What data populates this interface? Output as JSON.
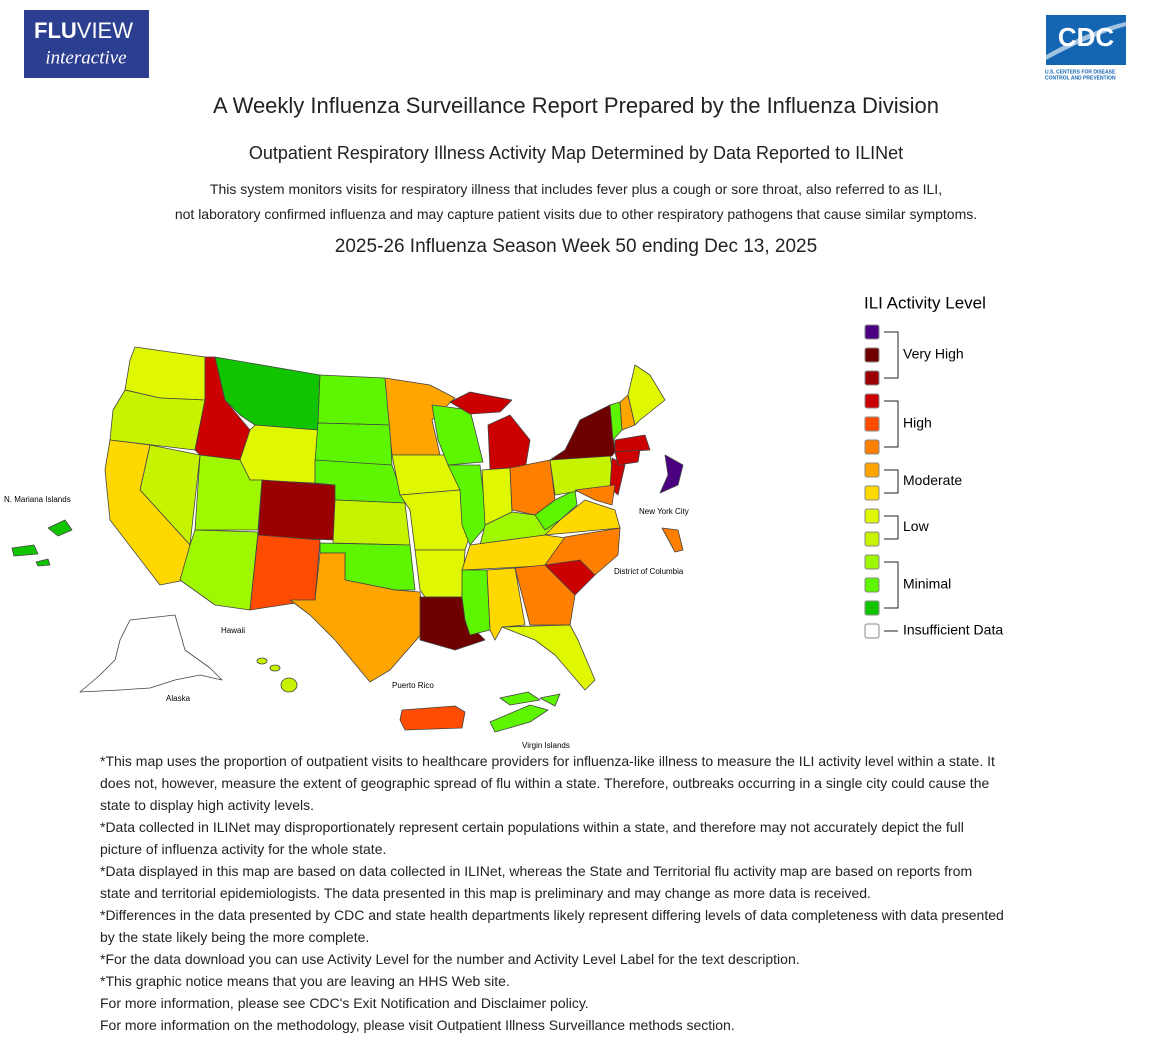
{
  "header": {
    "logo_left": {
      "bold": "FLU",
      "light": "VIEW",
      "script": "interactive"
    },
    "logo_right": {
      "text": "CDC",
      "subtext": [
        "U.S. CENTERS FOR DISEASE",
        "CONTROL AND PREVENTION"
      ]
    }
  },
  "title": "A Weekly Influenza Surveillance Report Prepared by the Influenza Division",
  "subtitle": "Outpatient Respiratory Illness Activity Map Determined by Data Reported to ILINet",
  "description": [
    "This system monitors visits for respiratory illness that includes fever plus a cough or sore throat, also referred to as ILI,",
    "not laboratory confirmed influenza and may capture patient visits due to other respiratory pathogens that cause similar symptoms."
  ],
  "season": "2025-26 Influenza Season Week 50 ending Dec 13, 2025",
  "map": {
    "labels": [
      "N. Mariana Islands",
      "New York City",
      "District of Columbia",
      "Hawaii",
      "Alaska",
      "Puerto Rico",
      "Virgin Islands"
    ]
  },
  "legend": {
    "title": "ILI Activity Level",
    "groups": [
      {
        "label": "Very High",
        "colors": [
          "#4b0082",
          "#6e0000",
          "#9b0000"
        ]
      },
      {
        "label": "High",
        "colors": [
          "#cc0000",
          "#ff4c00",
          "#ff8000"
        ]
      },
      {
        "label": "Moderate",
        "colors": [
          "#ffa500",
          "#ffd800"
        ]
      },
      {
        "label": "Low",
        "colors": [
          "#dff700",
          "#c6f300"
        ]
      },
      {
        "label": "Minimal",
        "colors": [
          "#9ff700",
          "#5ef500",
          "#10c400"
        ]
      },
      {
        "label": "Insufficient Data",
        "colors": [
          "#ffffff"
        ]
      }
    ]
  },
  "footnotes": [
    "*This map uses the proportion of outpatient visits to healthcare providers for influenza-like illness to measure the ILI activity level within a state. It does not, however, measure the extent of geographic spread of flu within a state. Therefore, outbreaks occurring in a single city could cause the state to display high activity levels.",
    "*Data collected in ILINet may disproportionately represent certain populations within a state, and therefore may not accurately depict the full picture of influenza activity for the whole state.",
    "*Data displayed in this map are based on data collected in ILINet, whereas the State and Territorial flu activity map are based on reports from state and territorial epidemiologists. The data presented in this map is preliminary and may change as more data is received.",
    "*Differences in the data presented by CDC and state health departments likely represent differing levels of data completeness with data presented by the state likely being the more complete.",
    "*For the data download you can use Activity Level for the number and Activity Level Label for the text description.",
    "*This graphic notice means that you are leaving an HHS Web site.",
    "For more information, please see CDC's Exit Notification and Disclaimer policy.",
    "For more information on the methodology, please visit Outpatient Illness Surveillance methods section."
  ]
}
